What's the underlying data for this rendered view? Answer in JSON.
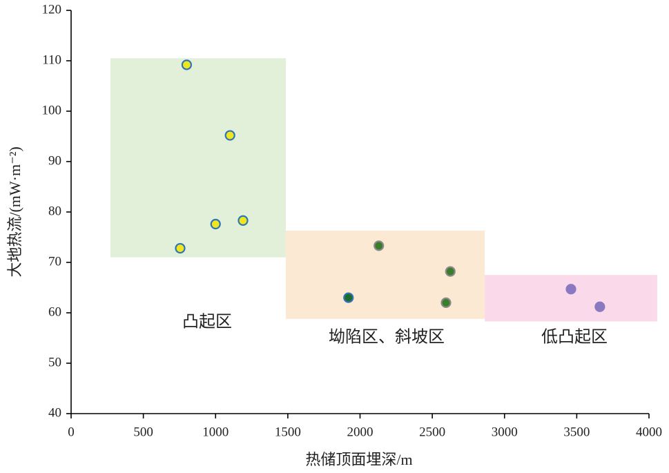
{
  "chart_data": {
    "type": "scatter",
    "xlabel": "热储顶面埋深/m",
    "ylabel": "大地热流/(mW·m⁻²)",
    "xlim": [
      0,
      4000
    ],
    "ylim": [
      40,
      120
    ],
    "xticks": [
      0,
      500,
      1000,
      1500,
      2000,
      2500,
      3000,
      3500,
      4000
    ],
    "yticks": [
      40,
      50,
      60,
      70,
      80,
      90,
      100,
      110,
      120
    ],
    "regions": [
      {
        "label": "凸起区",
        "x": [
          272,
          1486
        ],
        "y": [
          71,
          110.5
        ],
        "color": "#e2efd9"
      },
      {
        "label": "坳陷区、斜坡区",
        "x": [
          1486,
          2863
        ],
        "y": [
          58.8,
          76.3
        ],
        "color": "#fce9d4"
      },
      {
        "label": "低凸起区",
        "x": [
          2863,
          4057
        ],
        "y": [
          58.3,
          67.5
        ],
        "color": "#f9d9ea"
      }
    ],
    "series": [
      {
        "color": "#f0e61e",
        "edgecolor": "#2e75b6",
        "x": [
          800,
          1100,
          1000,
          1190,
          755
        ],
        "values": [
          109.2,
          95.2,
          77.6,
          78.3,
          72.8
        ]
      },
      {
        "color": "#3a7d2c",
        "edgecolor": "#8a8a8a",
        "x": [
          2130,
          2625,
          2595
        ],
        "values": [
          73.3,
          68.2,
          62
        ]
      },
      {
        "color": "#1e6b2e",
        "edgecolor": "#2e75b6",
        "x": [
          1920
        ],
        "values": [
          63
        ]
      },
      {
        "color": "#8a78c0",
        "edgecolor": "#8a78c0",
        "x": [
          3460,
          3660
        ],
        "values": [
          64.7,
          61.2
        ]
      }
    ]
  }
}
